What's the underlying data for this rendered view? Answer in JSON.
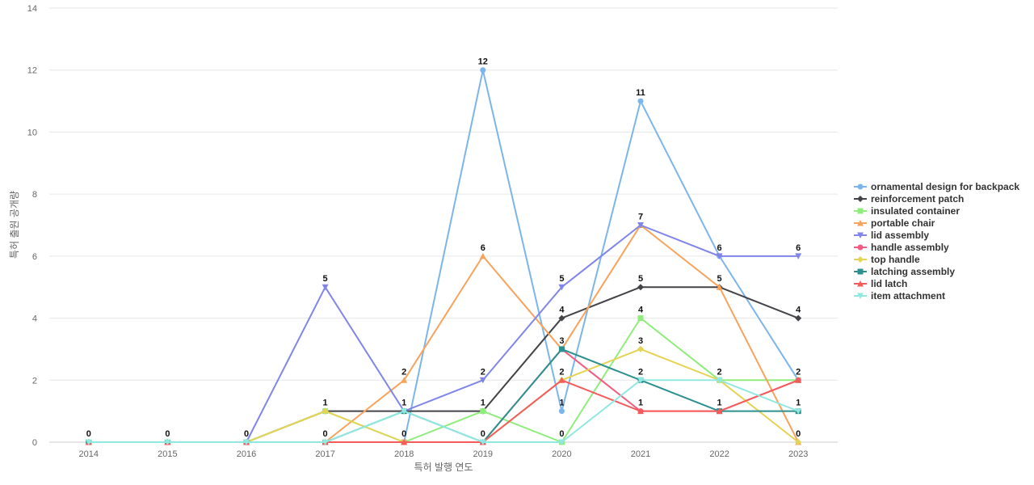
{
  "chart_data": {
    "type": "line",
    "title": "",
    "xlabel": "특허 발행 연도",
    "ylabel": "특허 출원 공개량",
    "categories": [
      "2014",
      "2015",
      "2016",
      "2017",
      "2018",
      "2019",
      "2020",
      "2021",
      "2022",
      "2023"
    ],
    "ylim": [
      0,
      14
    ],
    "yticks": [
      0,
      2,
      4,
      6,
      8,
      10,
      12,
      14
    ],
    "grid": true,
    "legend_position": "right",
    "series": [
      {
        "name": "ornamental design for backpack",
        "color": "#7cb5ec",
        "marker": "circle",
        "values": [
          0,
          0,
          0,
          0,
          0,
          12,
          1,
          11,
          6,
          2
        ]
      },
      {
        "name": "reinforcement patch",
        "color": "#434348",
        "marker": "diamond",
        "values": [
          0,
          0,
          0,
          1,
          1,
          1,
          4,
          5,
          5,
          4
        ]
      },
      {
        "name": "insulated container",
        "color": "#90ed7d",
        "marker": "square",
        "values": [
          0,
          0,
          0,
          1,
          0,
          1,
          0,
          4,
          2,
          2
        ]
      },
      {
        "name": "portable chair",
        "color": "#f7a35c",
        "marker": "triangle",
        "values": [
          0,
          0,
          0,
          0,
          2,
          6,
          3,
          7,
          5,
          0
        ]
      },
      {
        "name": "lid assembly",
        "color": "#8085e9",
        "marker": "triangle-down",
        "values": [
          0,
          0,
          0,
          5,
          1,
          2,
          5,
          7,
          6,
          6
        ]
      },
      {
        "name": "handle assembly",
        "color": "#f15c80",
        "marker": "circle",
        "values": [
          0,
          0,
          0,
          0,
          0,
          0,
          3,
          1,
          1,
          2
        ]
      },
      {
        "name": "top handle",
        "color": "#e4d354",
        "marker": "diamond",
        "values": [
          0,
          0,
          0,
          1,
          0,
          0,
          2,
          3,
          2,
          0
        ]
      },
      {
        "name": "latching assembly",
        "color": "#2b908f",
        "marker": "square",
        "values": [
          0,
          0,
          0,
          0,
          1,
          0,
          3,
          2,
          1,
          1
        ]
      },
      {
        "name": "lid latch",
        "color": "#f45b5b",
        "marker": "triangle",
        "values": [
          0,
          0,
          0,
          0,
          0,
          0,
          2,
          1,
          1,
          2
        ]
      },
      {
        "name": "item attachment",
        "color": "#91e8e1",
        "marker": "triangle-down",
        "values": [
          0,
          0,
          0,
          0,
          1,
          0,
          0,
          2,
          2,
          1
        ]
      }
    ],
    "data_labels": [
      {
        "category": "2014",
        "value": 0,
        "text": "0"
      },
      {
        "category": "2015",
        "value": 0,
        "text": "0"
      },
      {
        "category": "2016",
        "value": 0,
        "text": "0"
      },
      {
        "category": "2017",
        "value": 5,
        "text": "5"
      },
      {
        "category": "2017",
        "value": 1,
        "text": "1"
      },
      {
        "category": "2017",
        "value": 0,
        "text": "0"
      },
      {
        "category": "2018",
        "value": 2,
        "text": "2"
      },
      {
        "category": "2018",
        "value": 1,
        "text": "1"
      },
      {
        "category": "2018",
        "value": 0,
        "text": "0"
      },
      {
        "category": "2019",
        "value": 12,
        "text": "12"
      },
      {
        "category": "2019",
        "value": 6,
        "text": "6"
      },
      {
        "category": "2019",
        "value": 2,
        "text": "2"
      },
      {
        "category": "2019",
        "value": 1,
        "text": "1"
      },
      {
        "category": "2019",
        "value": 0,
        "text": "0"
      },
      {
        "category": "2020",
        "value": 5,
        "text": "5"
      },
      {
        "category": "2020",
        "value": 4,
        "text": "4"
      },
      {
        "category": "2020",
        "value": 3,
        "text": "3"
      },
      {
        "category": "2020",
        "value": 2,
        "text": "2"
      },
      {
        "category": "2020",
        "value": 1,
        "text": "1"
      },
      {
        "category": "2020",
        "value": 0,
        "text": "0"
      },
      {
        "category": "2021",
        "value": 11,
        "text": "11"
      },
      {
        "category": "2021",
        "value": 7,
        "text": "7"
      },
      {
        "category": "2021",
        "value": 5,
        "text": "5"
      },
      {
        "category": "2021",
        "value": 4,
        "text": "4"
      },
      {
        "category": "2021",
        "value": 3,
        "text": "3"
      },
      {
        "category": "2021",
        "value": 2,
        "text": "2"
      },
      {
        "category": "2021",
        "value": 1,
        "text": "1"
      },
      {
        "category": "2022",
        "value": 6,
        "text": "6"
      },
      {
        "category": "2022",
        "value": 5,
        "text": "5"
      },
      {
        "category": "2022",
        "value": 2,
        "text": "2"
      },
      {
        "category": "2022",
        "value": 1,
        "text": "1"
      },
      {
        "category": "2023",
        "value": 6,
        "text": "6"
      },
      {
        "category": "2023",
        "value": 4,
        "text": "4"
      },
      {
        "category": "2023",
        "value": 2,
        "text": "2"
      },
      {
        "category": "2023",
        "value": 1,
        "text": "1"
      },
      {
        "category": "2023",
        "value": 0,
        "text": "0"
      }
    ]
  }
}
